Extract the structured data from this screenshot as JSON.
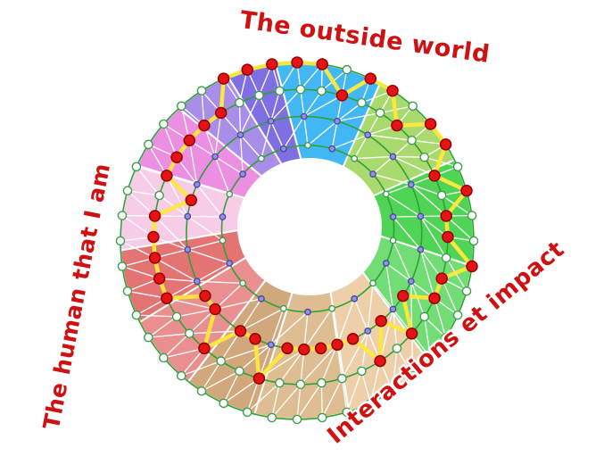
{
  "labels": {
    "top": "The outside world",
    "left": "The human that I am",
    "bottom_right": "Interactions et impact"
  },
  "label_color": "#d01111",
  "wheel": {
    "style": {
      "ring_color": "#2fa135",
      "spoke_color": "#ffffff",
      "node_white_fill": "#ffffff",
      "node_white_stroke": "#3f9f4c",
      "node_purple_fill": "#9191dc",
      "node_purple_stroke": "#4a4aa8",
      "node_red_fill": "#e41414",
      "node_red_stroke": "#990000",
      "sector_gap_color": "#ffffff"
    },
    "sectors": [
      {
        "name": "blue",
        "start": 97,
        "end": 62,
        "color": "#41b7f5"
      },
      {
        "name": "light-green",
        "start": 62,
        "end": 27,
        "color": "#a9da6e"
      },
      {
        "name": "green",
        "start": 27,
        "end": -8,
        "color": "#4fd455"
      },
      {
        "name": "green-2",
        "start": -8,
        "end": -42,
        "color": "#71dd74"
      },
      {
        "name": "peach",
        "start": -42,
        "end": -73,
        "color": "#edd0a9"
      },
      {
        "name": "tan",
        "start": -73,
        "end": -104,
        "color": "#dfbd92"
      },
      {
        "name": "brown",
        "start": -104,
        "end": -128,
        "color": "#d1a87b"
      },
      {
        "name": "light-red",
        "start": -128,
        "end": -153,
        "color": "#e98f8f"
      },
      {
        "name": "red",
        "start": -153,
        "end": -177,
        "color": "#e47474"
      },
      {
        "name": "light-pink",
        "start": -177,
        "end": -205,
        "color": "#f7cce6"
      },
      {
        "name": "magenta",
        "start": -205,
        "end": -228,
        "color": "#ec8ee2"
      },
      {
        "name": "lavender",
        "start": -228,
        "end": -247,
        "color": "#a88ee9"
      },
      {
        "name": "purple",
        "start": -247,
        "end": -263,
        "color": "#7e6fe3"
      }
    ],
    "rings": {
      "fractions": [
        1.0,
        0.72,
        0.44,
        0.14
      ],
      "node_counts": [
        44,
        44,
        22,
        22
      ]
    },
    "profile": {
      "color": "#ffe83a",
      "rings": [
        0,
        0,
        1,
        0,
        0,
        1,
        0,
        0,
        1,
        0,
        1,
        1,
        0,
        1,
        1,
        2,
        1,
        2,
        1,
        2,
        2,
        2,
        2,
        2,
        1,
        2,
        2,
        1,
        2,
        2,
        1,
        1,
        1,
        1,
        1,
        2,
        1,
        1,
        1,
        1,
        1,
        0,
        0,
        0
      ]
    }
  }
}
